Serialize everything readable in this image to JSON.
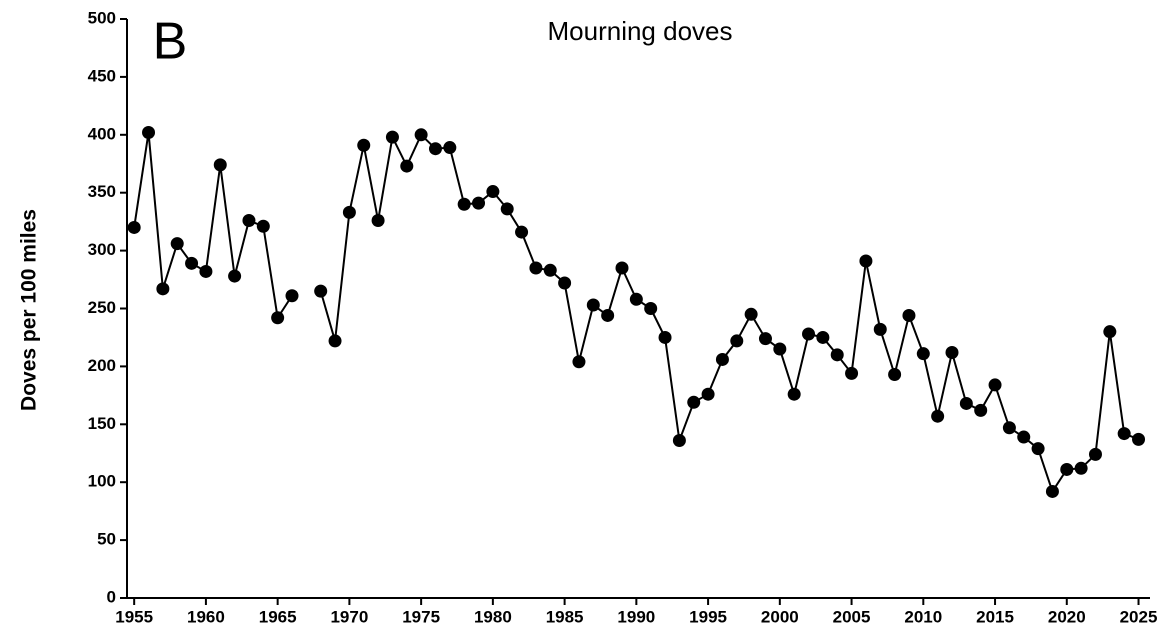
{
  "chart_data": {
    "type": "line",
    "panel_label": "B",
    "title": "Mourning doves",
    "y_label": "Doves per 100 miles",
    "x": [
      1955,
      1956,
      1957,
      1958,
      1959,
      1960,
      1961,
      1962,
      1963,
      1964,
      1965,
      1966,
      1967,
      1968,
      1969,
      1970,
      1971,
      1972,
      1973,
      1974,
      1975,
      1976,
      1977,
      1978,
      1979,
      1980,
      1981,
      1982,
      1983,
      1984,
      1985,
      1986,
      1987,
      1988,
      1989,
      1990,
      1991,
      1992,
      1993,
      1994,
      1995,
      1996,
      1997,
      1998,
      1999,
      2000,
      2001,
      2002,
      2003,
      2004,
      2005,
      2006,
      2007,
      2008,
      2009,
      2010,
      2011,
      2012,
      2013,
      2014,
      2015,
      2016,
      2017,
      2018,
      2019,
      2020,
      2021,
      2022,
      2023,
      2024,
      2025
    ],
    "series": [
      {
        "name": "Mourning doves",
        "color": "#000000",
        "values": [
          320,
          402,
          267,
          306,
          289,
          282,
          374,
          278,
          326,
          321,
          242,
          261,
          null,
          265,
          222,
          333,
          391,
          326,
          398,
          373,
          400,
          388,
          389,
          340,
          341,
          351,
          336,
          316,
          285,
          283,
          272,
          204,
          253,
          244,
          285,
          258,
          250,
          225,
          136,
          169,
          176,
          206,
          222,
          245,
          224,
          215,
          176,
          228,
          225,
          210,
          194,
          291,
          232,
          193,
          244,
          211,
          157,
          212,
          168,
          162,
          184,
          147,
          139,
          129,
          92,
          111,
          112,
          124,
          230,
          142,
          137
        ]
      }
    ],
    "xlim": [
      1954.5,
      2025.8
    ],
    "xticks": [
      1955,
      1960,
      1965,
      1970,
      1975,
      1980,
      1985,
      1990,
      1995,
      2000,
      2005,
      2010,
      2015,
      2020,
      2025
    ],
    "ylim": [
      0,
      500
    ],
    "yticks": [
      0,
      50,
      100,
      150,
      200,
      250,
      300,
      350,
      400,
      450,
      500
    ],
    "grid": false
  }
}
